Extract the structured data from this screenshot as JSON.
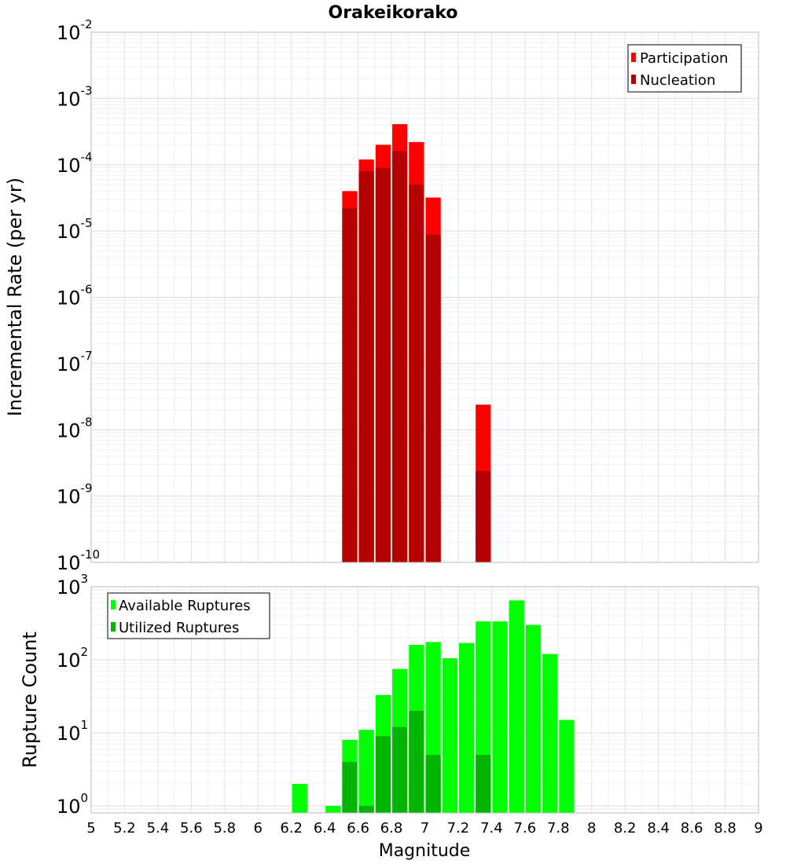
{
  "chart_data": [
    {
      "type": "bar",
      "title": "Orakeikorako",
      "xlabel": "Magnitude",
      "ylabel": "Incremental Rate (per yr)",
      "xlim": [
        5,
        9
      ],
      "ylim": [
        1e-10,
        0.01
      ],
      "yscale": "log",
      "y_ticks": [
        "10^-10",
        "10^-9",
        "10^-8",
        "10^-7",
        "10^-6",
        "10^-5",
        "10^-4",
        "10^-3",
        "10^-2"
      ],
      "grid": true,
      "legend_position": "top-right",
      "bar_width": 0.1,
      "series": [
        {
          "name": "Participation",
          "color": "#ff0000",
          "points": [
            {
              "x": 6.55,
              "y": 4e-05
            },
            {
              "x": 6.65,
              "y": 0.00012
            },
            {
              "x": 6.75,
              "y": 0.0002
            },
            {
              "x": 6.85,
              "y": 0.00041
            },
            {
              "x": 6.95,
              "y": 0.00022
            },
            {
              "x": 7.05,
              "y": 3.2e-05
            },
            {
              "x": 7.35,
              "y": 2.4e-08
            }
          ]
        },
        {
          "name": "Nucleation",
          "color": "#b40000",
          "points": [
            {
              "x": 6.55,
              "y": 2.2e-05
            },
            {
              "x": 6.65,
              "y": 8e-05
            },
            {
              "x": 6.75,
              "y": 9e-05
            },
            {
              "x": 6.85,
              "y": 0.00016
            },
            {
              "x": 6.95,
              "y": 5e-05
            },
            {
              "x": 7.05,
              "y": 8.8e-06
            },
            {
              "x": 7.35,
              "y": 2.4e-09
            }
          ]
        }
      ]
    },
    {
      "type": "bar",
      "xlabel": "Magnitude",
      "ylabel": "Rupture Count",
      "xlim": [
        5,
        9
      ],
      "ylim": [
        0.8,
        1000
      ],
      "yscale": "log",
      "x_ticks": [
        "5",
        "5.2",
        "5.4",
        "5.6",
        "5.8",
        "6",
        "6.2",
        "6.4",
        "6.6",
        "6.8",
        "7",
        "7.2",
        "7.4",
        "7.6",
        "7.8",
        "8",
        "8.2",
        "8.4",
        "8.6",
        "8.8",
        "9"
      ],
      "y_ticks": [
        "10^0",
        "10^1",
        "10^2",
        "10^3"
      ],
      "grid": true,
      "legend_position": "top-left",
      "bar_width": 0.1,
      "series": [
        {
          "name": "Available Ruptures",
          "color": "#00ff00",
          "points": [
            {
              "x": 6.25,
              "y": 2
            },
            {
              "x": 6.45,
              "y": 1
            },
            {
              "x": 6.55,
              "y": 8
            },
            {
              "x": 6.65,
              "y": 11
            },
            {
              "x": 6.75,
              "y": 33
            },
            {
              "x": 6.85,
              "y": 75
            },
            {
              "x": 6.95,
              "y": 160
            },
            {
              "x": 7.05,
              "y": 175
            },
            {
              "x": 7.15,
              "y": 105
            },
            {
              "x": 7.25,
              "y": 170
            },
            {
              "x": 7.35,
              "y": 335
            },
            {
              "x": 7.45,
              "y": 335
            },
            {
              "x": 7.55,
              "y": 650
            },
            {
              "x": 7.65,
              "y": 300
            },
            {
              "x": 7.75,
              "y": 120
            },
            {
              "x": 7.85,
              "y": 15
            }
          ]
        },
        {
          "name": "Utilized Ruptures",
          "color": "#00b400",
          "points": [
            {
              "x": 6.55,
              "y": 4
            },
            {
              "x": 6.65,
              "y": 1
            },
            {
              "x": 6.75,
              "y": 9
            },
            {
              "x": 6.85,
              "y": 12
            },
            {
              "x": 6.95,
              "y": 20
            },
            {
              "x": 7.05,
              "y": 5
            },
            {
              "x": 7.35,
              "y": 5
            }
          ]
        }
      ]
    }
  ]
}
